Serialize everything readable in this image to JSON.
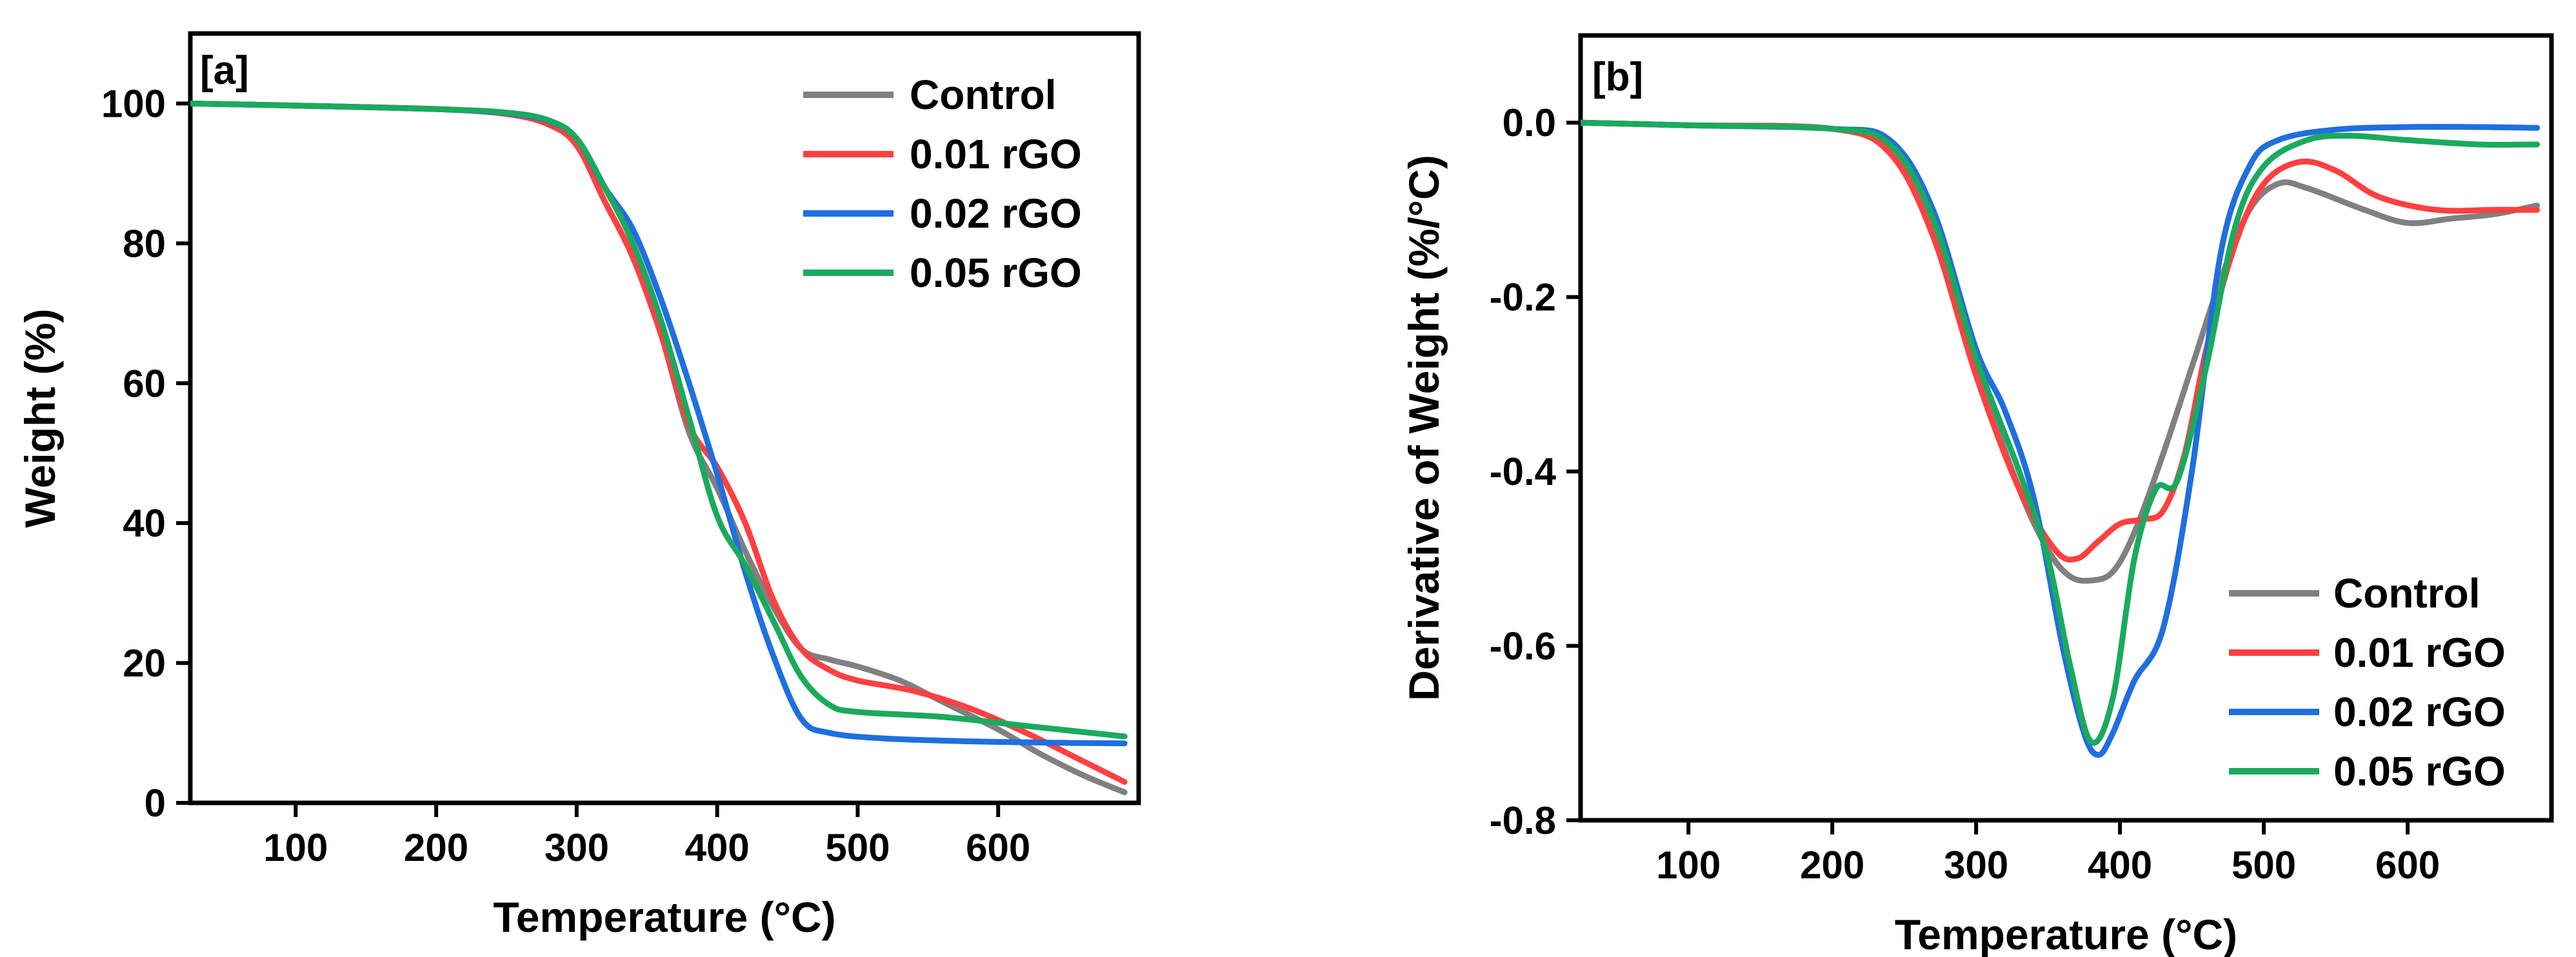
{
  "chart_data": [
    {
      "type": "line",
      "panel_label": "[a]",
      "xlabel": "Temperature (°C)",
      "ylabel": "Weight (%)",
      "xlim": [
        25,
        700
      ],
      "ylim": [
        0,
        110
      ],
      "xticks": [
        100,
        200,
        300,
        400,
        500,
        600
      ],
      "xtick_labels": [
        "100",
        "200",
        "300",
        "400",
        "500",
        "600"
      ],
      "yticks": [
        0,
        20,
        40,
        60,
        80,
        100
      ],
      "ytick_labels": [
        "0",
        "20",
        "40",
        "60",
        "80",
        "100"
      ],
      "legend_position": "top-right",
      "series": [
        {
          "name": "Control",
          "color": "#808080",
          "x": [
            25,
            100,
            200,
            250,
            280,
            300,
            320,
            340,
            360,
            380,
            400,
            420,
            440,
            460,
            480,
            500,
            530,
            560,
            600,
            630,
            660,
            690
          ],
          "y": [
            100,
            99.7,
            99.2,
            98.5,
            97,
            94,
            86,
            78,
            67,
            53,
            45,
            36,
            28,
            22,
            20.5,
            19.5,
            17.5,
            14.5,
            10.5,
            7,
            4,
            1.5
          ]
        },
        {
          "name": "0.01 rGO",
          "color": "#ff4040",
          "x": [
            25,
            100,
            200,
            250,
            280,
            300,
            320,
            340,
            360,
            380,
            400,
            420,
            440,
            460,
            480,
            500,
            540,
            580,
            620,
            660,
            690
          ],
          "y": [
            100,
            99.7,
            99.2,
            98.5,
            97,
            94,
            86,
            78,
            67,
            54,
            48,
            40,
            29,
            22,
            19,
            17.5,
            16,
            13.5,
            10,
            6,
            3
          ]
        },
        {
          "name": "0.02 rGO",
          "color": "#1f6fe0",
          "x": [
            25,
            100,
            200,
            250,
            280,
            300,
            320,
            340,
            360,
            380,
            400,
            420,
            440,
            460,
            480,
            520,
            580,
            640,
            690
          ],
          "y": [
            100,
            99.7,
            99.2,
            98.6,
            97.5,
            95,
            88,
            82,
            72,
            60,
            47,
            33,
            21,
            12,
            10,
            9.2,
            8.8,
            8.6,
            8.5
          ]
        },
        {
          "name": "0.05 rGO",
          "color": "#1aaa5e",
          "x": [
            25,
            100,
            200,
            250,
            280,
            300,
            320,
            340,
            360,
            380,
            400,
            420,
            440,
            460,
            480,
            500,
            560,
            620,
            690
          ],
          "y": [
            100,
            99.7,
            99.2,
            98.7,
            97.6,
            95,
            88,
            80,
            69,
            55,
            41,
            34,
            26,
            18,
            14,
            13,
            12.3,
            11,
            9.5
          ]
        }
      ]
    },
    {
      "type": "line",
      "panel_label": "[b]",
      "xlabel": "Temperature (°C)",
      "ylabel": "Derivative of Weight (%/°C)",
      "xlim": [
        25,
        700
      ],
      "ylim": [
        -0.8,
        0.1
      ],
      "xticks": [
        100,
        200,
        300,
        400,
        500,
        600
      ],
      "xtick_labels": [
        "100",
        "200",
        "300",
        "400",
        "500",
        "600"
      ],
      "yticks": [
        -0.8,
        -0.6,
        -0.4,
        -0.2,
        0.0
      ],
      "ytick_labels": [
        "-0.8",
        "-0.6",
        "-0.4",
        "-0.2",
        "0.0"
      ],
      "legend_position": "bottom-right",
      "series": [
        {
          "name": "Control",
          "color": "#808080",
          "x": [
            25,
            100,
            200,
            240,
            270,
            300,
            330,
            350,
            365,
            380,
            395,
            410,
            430,
            450,
            470,
            490,
            510,
            530,
            570,
            600,
            630,
            660,
            690
          ],
          "y": [
            0,
            -0.003,
            -0.007,
            -0.03,
            -0.12,
            -0.28,
            -0.42,
            -0.49,
            -0.52,
            -0.525,
            -0.515,
            -0.47,
            -0.38,
            -0.28,
            -0.18,
            -0.1,
            -0.07,
            -0.075,
            -0.1,
            -0.115,
            -0.11,
            -0.105,
            -0.095
          ]
        },
        {
          "name": "0.01 rGO",
          "color": "#ff4040",
          "x": [
            25,
            100,
            200,
            240,
            270,
            300,
            330,
            355,
            370,
            385,
            400,
            415,
            430,
            445,
            460,
            480,
            500,
            525,
            550,
            580,
            620,
            660,
            690
          ],
          "y": [
            0,
            -0.003,
            -0.007,
            -0.035,
            -0.13,
            -0.29,
            -0.42,
            -0.49,
            -0.5,
            -0.48,
            -0.46,
            -0.455,
            -0.445,
            -0.38,
            -0.26,
            -0.14,
            -0.07,
            -0.045,
            -0.055,
            -0.085,
            -0.1,
            -0.1,
            -0.1
          ]
        },
        {
          "name": "0.02 rGO",
          "color": "#1f6fe0",
          "x": [
            25,
            100,
            200,
            240,
            270,
            300,
            320,
            340,
            360,
            375,
            385,
            395,
            410,
            430,
            450,
            470,
            490,
            510,
            550,
            600,
            650,
            690
          ],
          "y": [
            0,
            -0.003,
            -0.007,
            -0.02,
            -0.1,
            -0.26,
            -0.33,
            -0.43,
            -0.6,
            -0.7,
            -0.725,
            -0.7,
            -0.64,
            -0.58,
            -0.4,
            -0.15,
            -0.05,
            -0.02,
            -0.008,
            -0.005,
            -0.005,
            -0.006
          ]
        },
        {
          "name": "0.05 rGO",
          "color": "#1aaa5e",
          "x": [
            25,
            100,
            200,
            240,
            270,
            300,
            330,
            350,
            365,
            380,
            395,
            410,
            425,
            440,
            460,
            480,
            500,
            530,
            560,
            600,
            650,
            690
          ],
          "y": [
            0,
            -0.003,
            -0.007,
            -0.025,
            -0.11,
            -0.27,
            -0.4,
            -0.5,
            -0.62,
            -0.71,
            -0.66,
            -0.5,
            -0.42,
            -0.41,
            -0.28,
            -0.12,
            -0.05,
            -0.02,
            -0.015,
            -0.02,
            -0.025,
            -0.025
          ]
        }
      ]
    }
  ]
}
